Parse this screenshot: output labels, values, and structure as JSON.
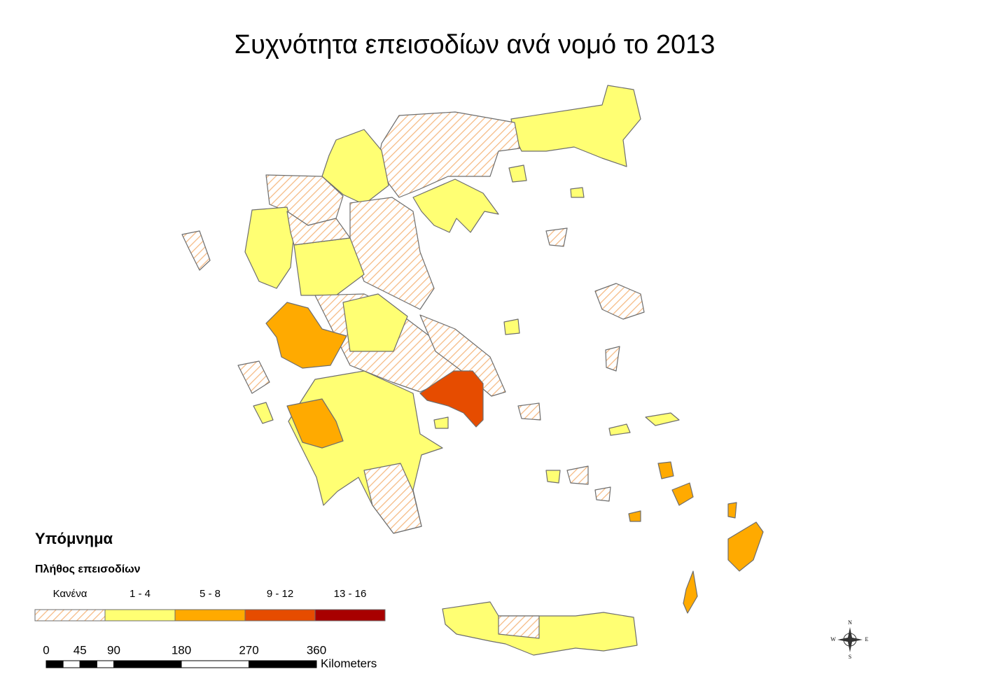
{
  "title": "Συχνότητα επεισοδίων ανά νομό το 2013",
  "legend": {
    "title": "Υπόμνημα",
    "subtitle": "Πλήθος επεισοδίων",
    "classes": [
      {
        "label": "Κανένα",
        "color": "#f5b982",
        "pattern": "hatch"
      },
      {
        "label": "1 - 4",
        "color": "#ffff73"
      },
      {
        "label": "5 - 8",
        "color": "#ffaa00"
      },
      {
        "label": "9 - 12",
        "color": "#e64c00"
      },
      {
        "label": "13 - 16",
        "color": "#a80000"
      }
    ]
  },
  "scale_bar": {
    "ticks": [
      0,
      45,
      90,
      180,
      270,
      360
    ],
    "unit": "Kilometers"
  },
  "compass": {
    "north": "N",
    "east": "E",
    "south": "S",
    "west": "W"
  }
}
